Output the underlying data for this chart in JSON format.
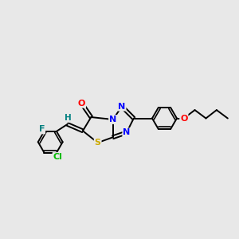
{
  "bg_color": "#e8e8e8",
  "atom_colors": {
    "C": "#000000",
    "N": "#0000ff",
    "O": "#ff0000",
    "S": "#ccaa00",
    "F": "#008080",
    "Cl": "#00bb00",
    "H": "#008080"
  },
  "bond_color": "#000000",
  "bond_width": 1.4,
  "fig_width": 3.0,
  "fig_height": 3.0,
  "dpi": 100
}
